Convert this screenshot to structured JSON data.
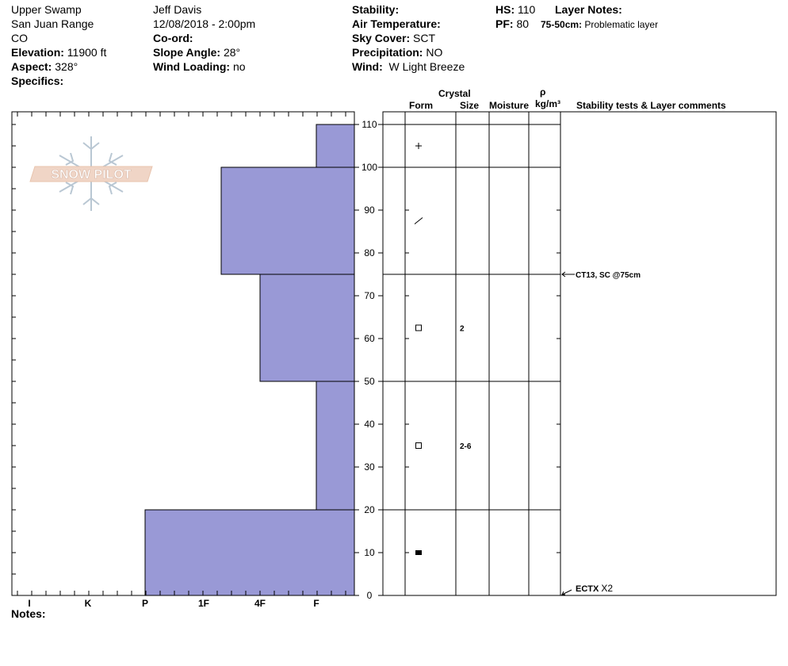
{
  "header": {
    "location": "Upper Swamp",
    "range": "San Juan Range",
    "state": "CO",
    "elevation_label": "Elevation:",
    "elevation_value": "11900 ft",
    "aspect_label": "Aspect:",
    "aspect_value": "328°",
    "specifics_label": "Specifics:",
    "observer": "Jeff Davis",
    "datetime": "12/08/2018 - 2:00pm",
    "coord_label": "Co-ord:",
    "slope_label": "Slope Angle:",
    "slope_value": "28°",
    "wind_loading_label": "Wind Loading:",
    "wind_loading_value": "no",
    "stability_label": "Stability:",
    "air_temp_label": "Air Temperature:",
    "sky_label": "Sky Cover:",
    "sky_value": "SCT",
    "precip_label": "Precipitation:",
    "precip_value": "NO",
    "wind_label": "Wind:",
    "wind_value": "W Light Breeze",
    "hs_label": "HS:",
    "hs_value": "110",
    "pf_label": "PF:",
    "pf_value": "80",
    "layer_notes_label": "Layer Notes:",
    "layer_note_depth": "75-50cm:",
    "layer_note_text": "Problematic layer"
  },
  "logo": {
    "text": "SNOW PILOT"
  },
  "notes_label": "Notes:",
  "column_headers": {
    "crystal": "Crystal",
    "form": "Form",
    "size": "Size",
    "moisture": "Moisture",
    "rho": "ρ",
    "density_unit": "kg/m³",
    "comments": "Stability tests & Layer comments"
  },
  "colors": {
    "hardness_fill": "#9999d6",
    "line": "#000000"
  },
  "chart_data": {
    "type": "bar",
    "orientation": "horizontal",
    "y_axis": {
      "range": [
        0,
        110
      ],
      "ticks": [
        0,
        10,
        20,
        30,
        40,
        50,
        60,
        70,
        80,
        90,
        100,
        110
      ],
      "label": ""
    },
    "x_axis": {
      "categories": [
        "I",
        "K",
        "P",
        "1F",
        "4F",
        "F"
      ]
    },
    "hardness_layers": [
      {
        "top": 110,
        "bottom": 100,
        "hardness": "F"
      },
      {
        "top": 100,
        "bottom": 75,
        "hardness": "1F-"
      },
      {
        "top": 75,
        "bottom": 50,
        "hardness": "4F"
      },
      {
        "top": 50,
        "bottom": 20,
        "hardness": "F"
      },
      {
        "top": 20,
        "bottom": 0,
        "hardness": "P"
      }
    ],
    "layer_boundaries": [
      110,
      100,
      75,
      50,
      20,
      0
    ],
    "crystals": [
      {
        "depth": 105,
        "form": "+",
        "size": ""
      },
      {
        "depth": 87.5,
        "form": "/",
        "size": ""
      },
      {
        "depth": 62.5,
        "form": "□",
        "size": "2"
      },
      {
        "depth": 35,
        "form": "□",
        "size": "2-6"
      },
      {
        "depth": 10,
        "form": "■",
        "size": ""
      }
    ],
    "tests": [
      {
        "depth": 75,
        "text": "CT13, SC @75cm"
      },
      {
        "depth": 0,
        "text": "ECTX  X2"
      }
    ]
  }
}
